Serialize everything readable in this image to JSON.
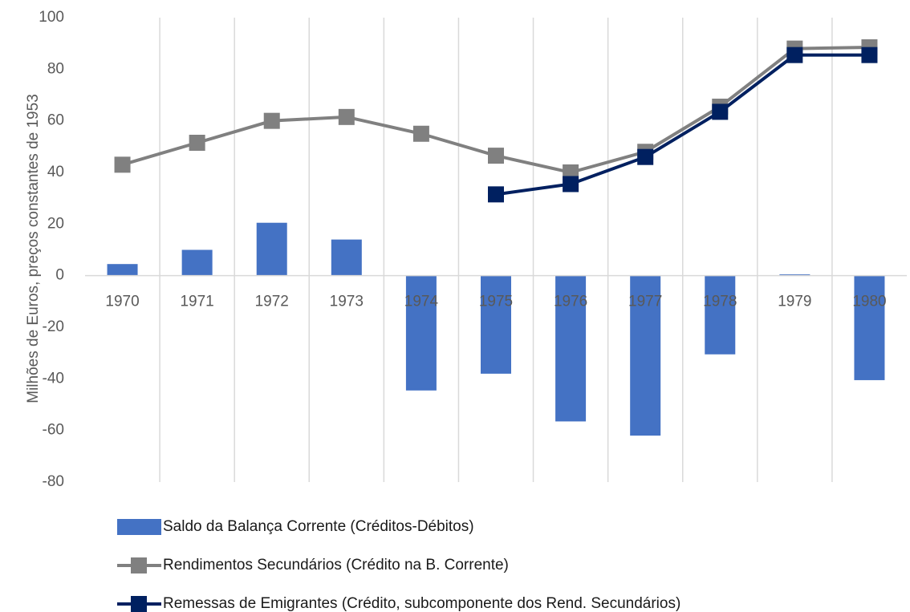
{
  "chart_data": {
    "type": "bar-line",
    "y_label": "Milhões de Euros, preços constantes de 1953",
    "categories": [
      "1970",
      "1971",
      "1972",
      "1973",
      "1974",
      "1975",
      "1976",
      "1977",
      "1978",
      "1979",
      "1980"
    ],
    "series": [
      {
        "name": "Saldo da Balança Corrente (Créditos-Débitos)",
        "kind": "bar",
        "color": "#4472c4",
        "values": [
          4.5,
          10,
          20.5,
          14,
          -44.5,
          -38,
          -56.5,
          -62,
          -30.5,
          0.5,
          -40.5
        ]
      },
      {
        "name": "Rendimentos Secundários (Crédito na B. Corrente)",
        "kind": "line",
        "color": "#808080",
        "values": [
          43,
          51.5,
          60,
          61.5,
          55,
          46.5,
          40,
          48,
          65.5,
          88,
          88.5
        ]
      },
      {
        "name": "Remessas de Emigrantes (Crédito, subcomponente dos Rend. Secundários)",
        "kind": "line",
        "color": "#002060",
        "values": [
          null,
          null,
          null,
          null,
          null,
          31.5,
          35.5,
          46,
          63.5,
          85.5,
          85.5
        ]
      }
    ],
    "ylim": [
      -80,
      100
    ],
    "yticks": [
      -80,
      -60,
      -40,
      -20,
      0,
      20,
      40,
      60,
      80,
      100
    ]
  }
}
